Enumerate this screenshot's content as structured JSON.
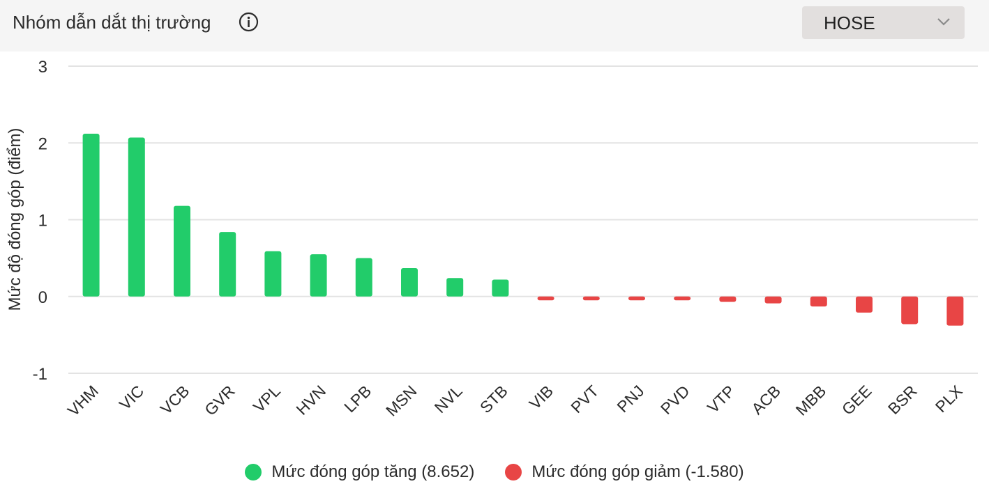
{
  "header": {
    "title": "Nhóm dẫn dắt thị trường",
    "exchange_select": {
      "value": "HOSE"
    }
  },
  "colors": {
    "positive": "#22cc6a",
    "negative": "#e84545",
    "grid": "#e3e3e3"
  },
  "legend": {
    "positive_label": "Mức đóng góp tăng (8.652)",
    "negative_label": "Mức đóng góp giảm (-1.580)"
  },
  "chart_data": {
    "type": "bar",
    "title": "Nhóm dẫn dắt thị trường",
    "ylabel": "Mức độ đóng góp (điểm)",
    "xlabel": "",
    "ylim": [
      -1,
      3
    ],
    "yticks": [
      3,
      2,
      1,
      0,
      -1
    ],
    "grid": true,
    "legend_position": "bottom",
    "categories": [
      "VHM",
      "VIC",
      "VCB",
      "GVR",
      "VPL",
      "HVN",
      "LPB",
      "MSN",
      "NVL",
      "STB",
      "VIB",
      "PVT",
      "PNJ",
      "PVD",
      "VTP",
      "ACB",
      "MBB",
      "GEE",
      "BSR",
      "PLX"
    ],
    "values": [
      2.12,
      2.07,
      1.18,
      0.84,
      0.59,
      0.55,
      0.5,
      0.37,
      0.24,
      0.22,
      -0.05,
      -0.05,
      -0.05,
      -0.05,
      -0.07,
      -0.09,
      -0.13,
      -0.21,
      -0.36,
      -0.38
    ],
    "series": [
      {
        "name": "Mức đóng góp tăng (8.652)",
        "sign": "positive"
      },
      {
        "name": "Mức đóng góp giảm (-1.580)",
        "sign": "negative"
      }
    ]
  }
}
